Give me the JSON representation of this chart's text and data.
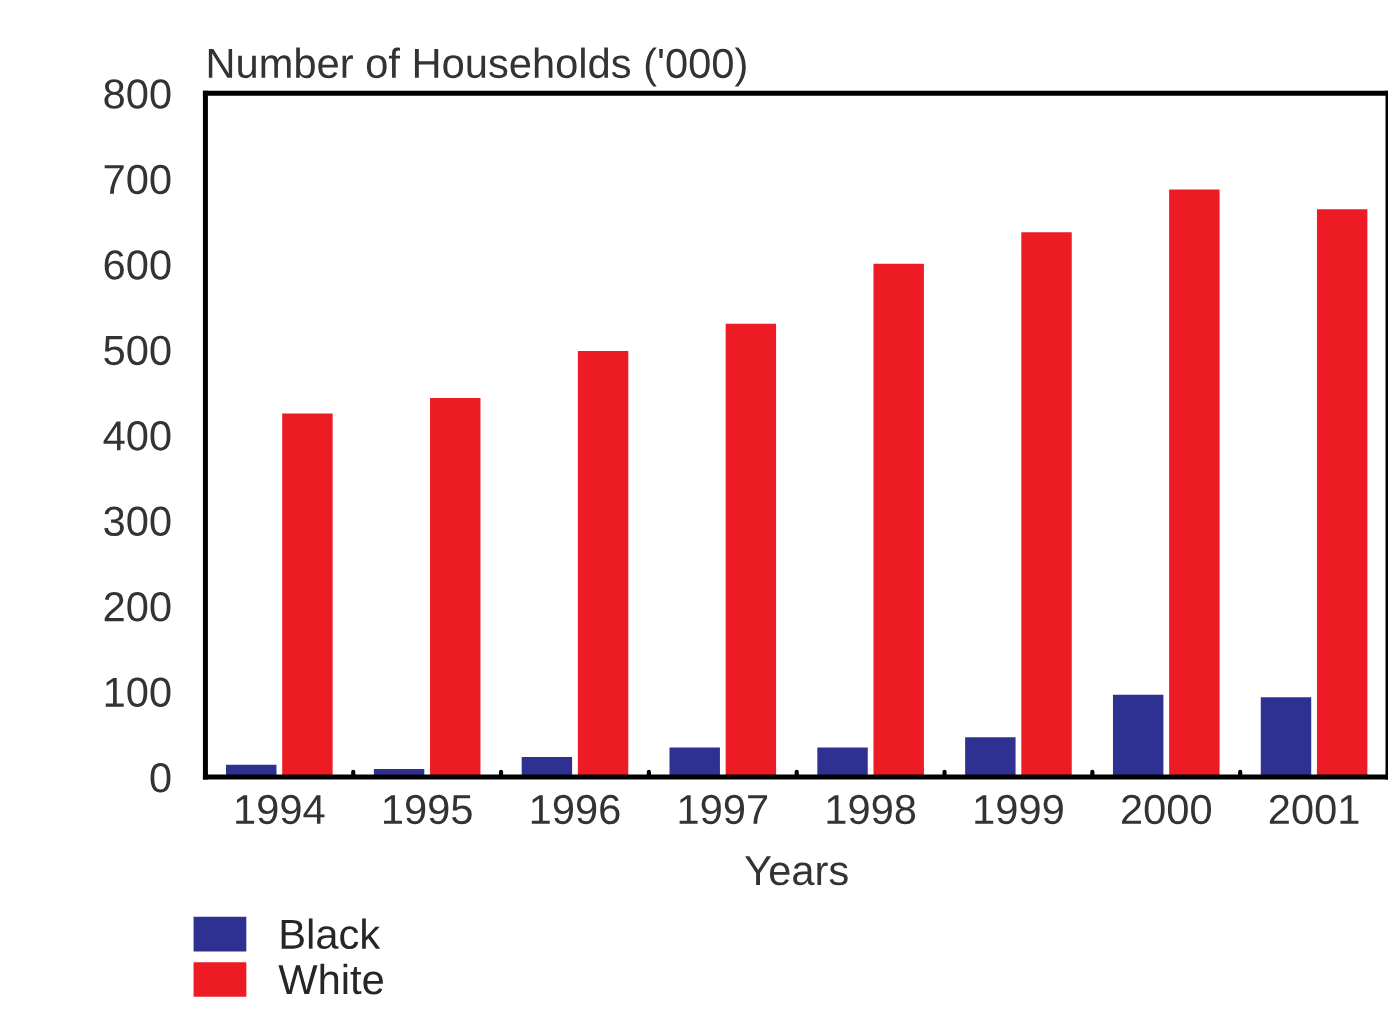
{
  "chart_data": {
    "type": "bar",
    "ylabel": "Number of Households ('000)",
    "xlabel": "Years",
    "categories": [
      "1994",
      "1995",
      "1996",
      "1997",
      "1998",
      "1999",
      "2000",
      "2001"
    ],
    "series": [
      {
        "name": "Black",
        "color": "#2e3192",
        "values": [
          16,
          11,
          25,
          36,
          36,
          48,
          98,
          95
        ]
      },
      {
        "name": "White",
        "color": "#ed1c24",
        "values": [
          427,
          445,
          500,
          532,
          602,
          639,
          689,
          666
        ]
      }
    ],
    "ylim": [
      0,
      800
    ],
    "yticks": [
      0,
      100,
      200,
      300,
      400,
      500,
      600,
      700,
      800
    ],
    "grid": false,
    "legend": "bottom left"
  }
}
